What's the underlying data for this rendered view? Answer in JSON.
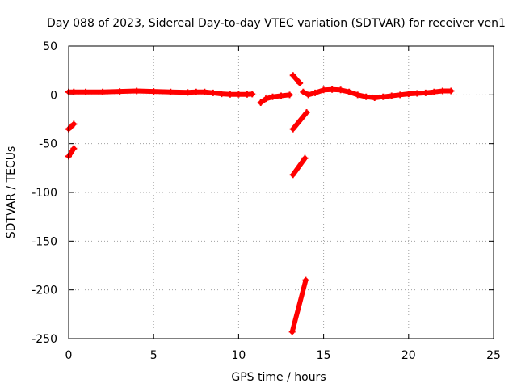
{
  "chart_data": {
    "type": "scatter",
    "title": "Day 088 of 2023, Sidereal Day-to-day VTEC variation (SDTVAR) for receiver ven1",
    "xlabel": "GPS time / hours",
    "ylabel": "SDTVAR / TECUs",
    "xlim": [
      0,
      25
    ],
    "ylim": [
      -250,
      50
    ],
    "xticks": [
      0,
      5,
      10,
      15,
      20,
      25
    ],
    "yticks": [
      50,
      0,
      -50,
      -100,
      -150,
      -200,
      -250
    ],
    "grid": true,
    "series": [
      {
        "name": "SDTVAR",
        "color": "#ff0000",
        "marker": "plus",
        "segments": [
          [
            [
              0.0,
              3
            ],
            [
              0.3,
              3
            ],
            [
              1,
              3
            ],
            [
              2,
              3
            ],
            [
              3,
              3.5
            ],
            [
              4,
              4
            ],
            [
              5,
              3.5
            ],
            [
              6,
              3
            ],
            [
              7,
              2.5
            ],
            [
              7.5,
              3
            ],
            [
              8,
              3
            ],
            [
              8.5,
              2
            ],
            [
              9,
              1
            ],
            [
              9.5,
              0.5
            ],
            [
              10,
              0.5
            ],
            [
              10.5,
              0.5
            ],
            [
              10.8,
              0.8
            ]
          ],
          [
            [
              11.3,
              -8
            ],
            [
              11.6,
              -4
            ],
            [
              12,
              -2
            ],
            [
              12.5,
              -1
            ],
            [
              13.0,
              0
            ]
          ],
          [
            [
              13.8,
              3
            ],
            [
              14.1,
              0
            ],
            [
              14.5,
              2
            ],
            [
              15,
              5
            ],
            [
              15.5,
              5.5
            ],
            [
              16,
              5
            ],
            [
              16.5,
              3
            ],
            [
              17,
              0
            ],
            [
              17.5,
              -2
            ],
            [
              18,
              -3
            ],
            [
              18.5,
              -2
            ],
            [
              19,
              -1
            ],
            [
              19.5,
              0
            ],
            [
              20,
              1
            ],
            [
              20.5,
              1.5
            ],
            [
              21,
              2
            ],
            [
              21.5,
              3
            ],
            [
              22,
              4
            ],
            [
              22.5,
              4
            ]
          ],
          [
            [
              0.0,
              -35
            ],
            [
              0.3,
              -30
            ]
          ],
          [
            [
              0.0,
              -63
            ],
            [
              0.3,
              -55
            ]
          ],
          [
            [
              13.2,
              20
            ],
            [
              13.6,
              12
            ]
          ],
          [
            [
              13.2,
              -35
            ],
            [
              14.0,
              -18
            ]
          ],
          [
            [
              13.2,
              -82
            ],
            [
              13.9,
              -65
            ]
          ],
          [
            [
              13.15,
              -243
            ],
            [
              13.95,
              -190
            ]
          ]
        ]
      }
    ]
  }
}
